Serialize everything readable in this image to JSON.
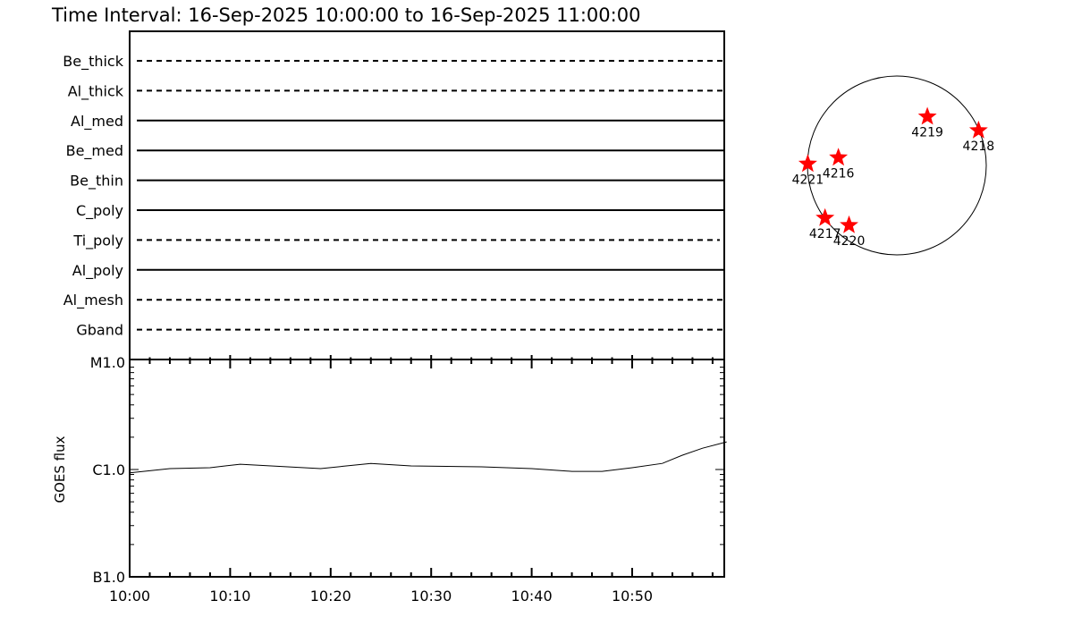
{
  "title": "Time Interval: 16-Sep-2025 10:00:00 to 16-Sep-2025 11:00:00",
  "filters": [
    {
      "name": "Be_thick",
      "style": "dashed"
    },
    {
      "name": "Al_thick",
      "style": "dashed"
    },
    {
      "name": "Al_med",
      "style": "solid"
    },
    {
      "name": "Be_med",
      "style": "solid"
    },
    {
      "name": "Be_thin",
      "style": "solid"
    },
    {
      "name": "C_poly",
      "style": "solid"
    },
    {
      "name": "Ti_poly",
      "style": "dashed"
    },
    {
      "name": "Al_poly",
      "style": "solid"
    },
    {
      "name": "Al_mesh",
      "style": "dashed"
    },
    {
      "name": "Gband",
      "style": "dashed"
    }
  ],
  "chart_data": {
    "type": "line",
    "ylabel": "GOES flux",
    "yscale": "log",
    "ylim": [
      1e-07,
      1e-05
    ],
    "ytick_labels": [
      {
        "value": 1e-05,
        "label": "M1.0"
      },
      {
        "value": 1e-06,
        "label": "C1.0"
      },
      {
        "value": 1e-07,
        "label": "B1.0"
      }
    ],
    "xlim_minutes_after_10": [
      0,
      59.4
    ],
    "xtick_labels": [
      "10:00",
      "10:10",
      "10:20",
      "10:30",
      "10:40",
      "10:50"
    ],
    "series": [
      {
        "x": [
          "10:00",
          "10:04",
          "10:08",
          "10:11",
          "10:19",
          "10:24",
          "10:28",
          "10:35",
          "10:40",
          "10:44",
          "10:47",
          "10:50",
          "10:53",
          "10:55",
          "10:57",
          "10:59"
        ],
        "y": [
          9.3e-07,
          1.02e-06,
          1.04e-06,
          1.12e-06,
          1.02e-06,
          1.14e-06,
          1.08e-06,
          1.06e-06,
          1.02e-06,
          9.6e-07,
          9.6e-07,
          1.04e-06,
          1.14e-06,
          1.36e-06,
          1.58e-06,
          1.81e-06
        ]
      }
    ]
  },
  "sun_map": {
    "marker_color": "#ff0000",
    "regions": [
      {
        "label": "4221",
        "lon": -85,
        "lat": 1
      },
      {
        "label": "4216",
        "lon": -41,
        "lat": 5
      },
      {
        "label": "4219",
        "lon": 24,
        "lat": 33
      },
      {
        "label": "4218",
        "lon": 97,
        "lat": 23
      },
      {
        "label": "4217",
        "lon": -83,
        "lat": -36
      },
      {
        "label": "4220",
        "lon": -46,
        "lat": -42
      }
    ]
  }
}
